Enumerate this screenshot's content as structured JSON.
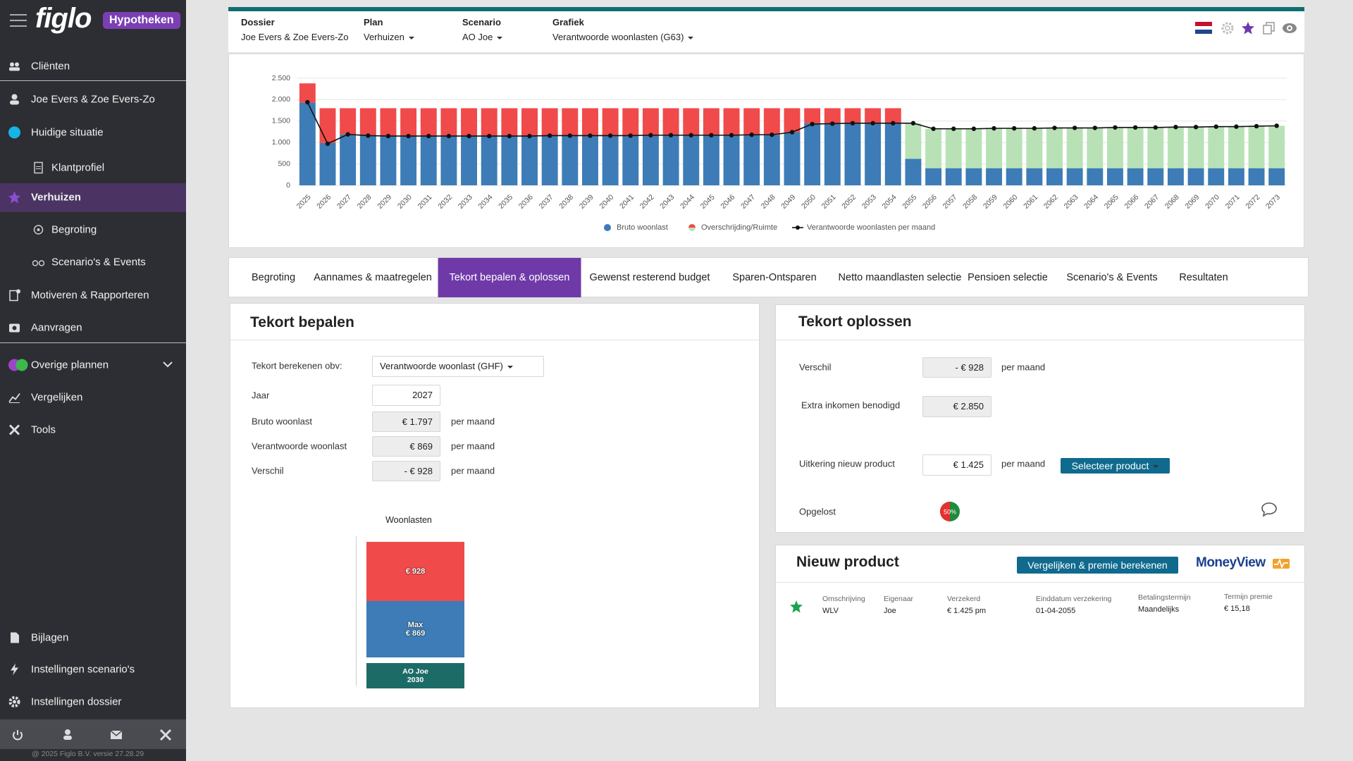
{
  "sidebar": {
    "logo": "figlo",
    "badge": "Hypotheken",
    "items": [
      "Cliënten",
      "Joe Evers & Zoe Evers-Zo",
      "Huidige situatie",
      "Klantprofiel",
      "Verhuizen",
      "Begroting",
      "Scenario's & Events",
      "Motiveren & Rapporteren",
      "Aanvragen",
      "Overige plannen",
      "Vergelijken",
      "Tools",
      "Bijlagen",
      "Instellingen scenario's",
      "Instellingen dossier"
    ],
    "copyright": "@ 2025 Figlo B.V. versie 27.28.29"
  },
  "header": {
    "fields": [
      {
        "label": "Dossier",
        "value": "Joe Evers & Zoe Evers-Zo"
      },
      {
        "label": "Plan",
        "value": "Verhuizen"
      },
      {
        "label": "Scenario",
        "value": "AO Joe"
      },
      {
        "label": "Grafiek",
        "value": "Verantwoorde woonlasten (G63)"
      }
    ]
  },
  "chart_data": {
    "type": "bar",
    "stacked": true,
    "grid": true,
    "legend": "bottom",
    "categories": [
      "2025",
      "2026",
      "2027",
      "2028",
      "2029",
      "2030",
      "2031",
      "2032",
      "2033",
      "2034",
      "2035",
      "2036",
      "2037",
      "2038",
      "2039",
      "2040",
      "2041",
      "2042",
      "2043",
      "2044",
      "2045",
      "2046",
      "2047",
      "2048",
      "2049",
      "2050",
      "2051",
      "2052",
      "2053",
      "2054",
      "2055",
      "2056",
      "2057",
      "2058",
      "2059",
      "2060",
      "2061",
      "2062",
      "2063",
      "2064",
      "2065",
      "2066",
      "2067",
      "2068",
      "2069",
      "2070",
      "2071",
      "2072",
      "2073"
    ],
    "ylim": [
      0,
      2500
    ],
    "yticks": [
      0,
      500,
      {
        "value": 1000,
        "label": "1.000"
      },
      {
        "value": 1500,
        "label": "1.500"
      },
      {
        "value": 2000,
        "label": "2.000"
      },
      {
        "value": 2500,
        "label": "2.500"
      }
    ],
    "series": [
      {
        "name": "Bruto woonlast",
        "type": "bar",
        "color": "#3d7cb6",
        "values": [
          1930,
          990,
          1190,
          1160,
          1150,
          1150,
          1150,
          1150,
          1150,
          1150,
          1150,
          1150,
          1160,
          1160,
          1160,
          1160,
          1160,
          1170,
          1170,
          1170,
          1170,
          1170,
          1180,
          1180,
          1240,
          1450,
          1450,
          1450,
          1450,
          1450,
          620,
          400,
          400,
          400,
          400,
          400,
          400,
          400,
          400,
          400,
          400,
          400,
          400,
          400,
          400,
          400,
          400,
          400,
          400
        ]
      },
      {
        "name": "Overschrijding/Ruimte",
        "type": "bar",
        "color": "#f04a4a",
        "values": [
          450,
          810,
          610,
          640,
          650,
          650,
          650,
          650,
          650,
          650,
          650,
          650,
          640,
          640,
          640,
          640,
          640,
          630,
          630,
          630,
          630,
          630,
          620,
          620,
          560,
          350,
          350,
          350,
          350,
          350,
          830,
          920,
          920,
          920,
          930,
          930,
          930,
          940,
          940,
          940,
          950,
          950,
          950,
          960,
          960,
          970,
          970,
          980,
          990
        ],
        "colors": [
          "#f04a4a",
          "#f04a4a",
          "#f04a4a",
          "#f04a4a",
          "#f04a4a",
          "#f04a4a",
          "#f04a4a",
          "#f04a4a",
          "#f04a4a",
          "#f04a4a",
          "#f04a4a",
          "#f04a4a",
          "#f04a4a",
          "#f04a4a",
          "#f04a4a",
          "#f04a4a",
          "#f04a4a",
          "#f04a4a",
          "#f04a4a",
          "#f04a4a",
          "#f04a4a",
          "#f04a4a",
          "#f04a4a",
          "#f04a4a",
          "#f04a4a",
          "#f04a4a",
          "#f04a4a",
          "#f04a4a",
          "#f04a4a",
          "#f04a4a",
          "#b8e2b6",
          "#b8e2b6",
          "#b8e2b6",
          "#b8e2b6",
          "#b8e2b6",
          "#b8e2b6",
          "#b8e2b6",
          "#b8e2b6",
          "#b8e2b6",
          "#b8e2b6",
          "#b8e2b6",
          "#b8e2b6",
          "#b8e2b6",
          "#b8e2b6",
          "#b8e2b6",
          "#b8e2b6",
          "#b8e2b6",
          "#b8e2b6",
          "#b8e2b6"
        ]
      },
      {
        "name": "Verantwoorde woonlasten per maand",
        "type": "line",
        "color": "#111111",
        "values": [
          1940,
          970,
          1190,
          1160,
          1150,
          1150,
          1150,
          1150,
          1150,
          1150,
          1150,
          1150,
          1160,
          1160,
          1160,
          1160,
          1160,
          1170,
          1170,
          1170,
          1170,
          1170,
          1180,
          1180,
          1240,
          1430,
          1440,
          1450,
          1450,
          1450,
          1450,
          1320,
          1320,
          1320,
          1330,
          1330,
          1330,
          1340,
          1340,
          1340,
          1350,
          1350,
          1350,
          1360,
          1360,
          1370,
          1370,
          1380,
          1390
        ]
      }
    ]
  },
  "tabs": [
    "Begroting",
    "Aannames & maatregelen",
    "Tekort bepalen & oplossen",
    "Gewenst resterend budget",
    "Sparen-Ontsparen",
    "Netto maandlasten selectie",
    "Pensioen selectie",
    "Scenario's & Events",
    "Resultaten"
  ],
  "tekort_bepalen": {
    "title": "Tekort bepalen",
    "basis": {
      "label": "Tekort berekenen obv:",
      "value": "Verantwoorde woonlast (GHF)"
    },
    "jaar": {
      "label": "Jaar",
      "value": "2027"
    },
    "rows": [
      {
        "label": "Bruto woonlast",
        "value": "€ 1.797",
        "unit": "per maand"
      },
      {
        "label": "Verantwoorde woonlast",
        "value": "€ 869",
        "unit": "per maand"
      },
      {
        "label": "Verschil",
        "value": "- € 928",
        "unit": "per maand"
      }
    ],
    "woonlasten": {
      "title": "Woonlasten",
      "top": "€ 928",
      "middle": [
        "Max",
        "€ 869"
      ],
      "bottom": [
        "AO Joe",
        "2030"
      ]
    }
  },
  "tekort_oplossen": {
    "title": "Tekort oplossen",
    "verschil": {
      "label": "Verschil",
      "value": "- € 928",
      "unit": "per maand"
    },
    "extra": {
      "label": "Extra inkomen benodigd",
      "value": "€ 2.850"
    },
    "uitkering": {
      "label": "Uitkering nieuw product",
      "value": "€ 1.425",
      "unit": "per maand",
      "button": "Selecteer product"
    },
    "opgelost": {
      "label": "Opgelost",
      "value": "50%"
    }
  },
  "nieuw_product": {
    "title": "Nieuw product",
    "button": "Vergelijken & premie berekenen",
    "logo": "MoneyView",
    "columns": [
      {
        "label": "Omschrijving",
        "value": "WLV"
      },
      {
        "label": "Eigenaar",
        "value": "Joe"
      },
      {
        "label": "Verzekerd",
        "value": "€ 1.425 pm"
      },
      {
        "label": "Einddatum verzekering",
        "value": "01-04-2055"
      },
      {
        "label": "Betalingstermijn",
        "value": "Maandelijks"
      },
      {
        "label": "Termijn premie",
        "value": "€ 15,18"
      }
    ]
  }
}
